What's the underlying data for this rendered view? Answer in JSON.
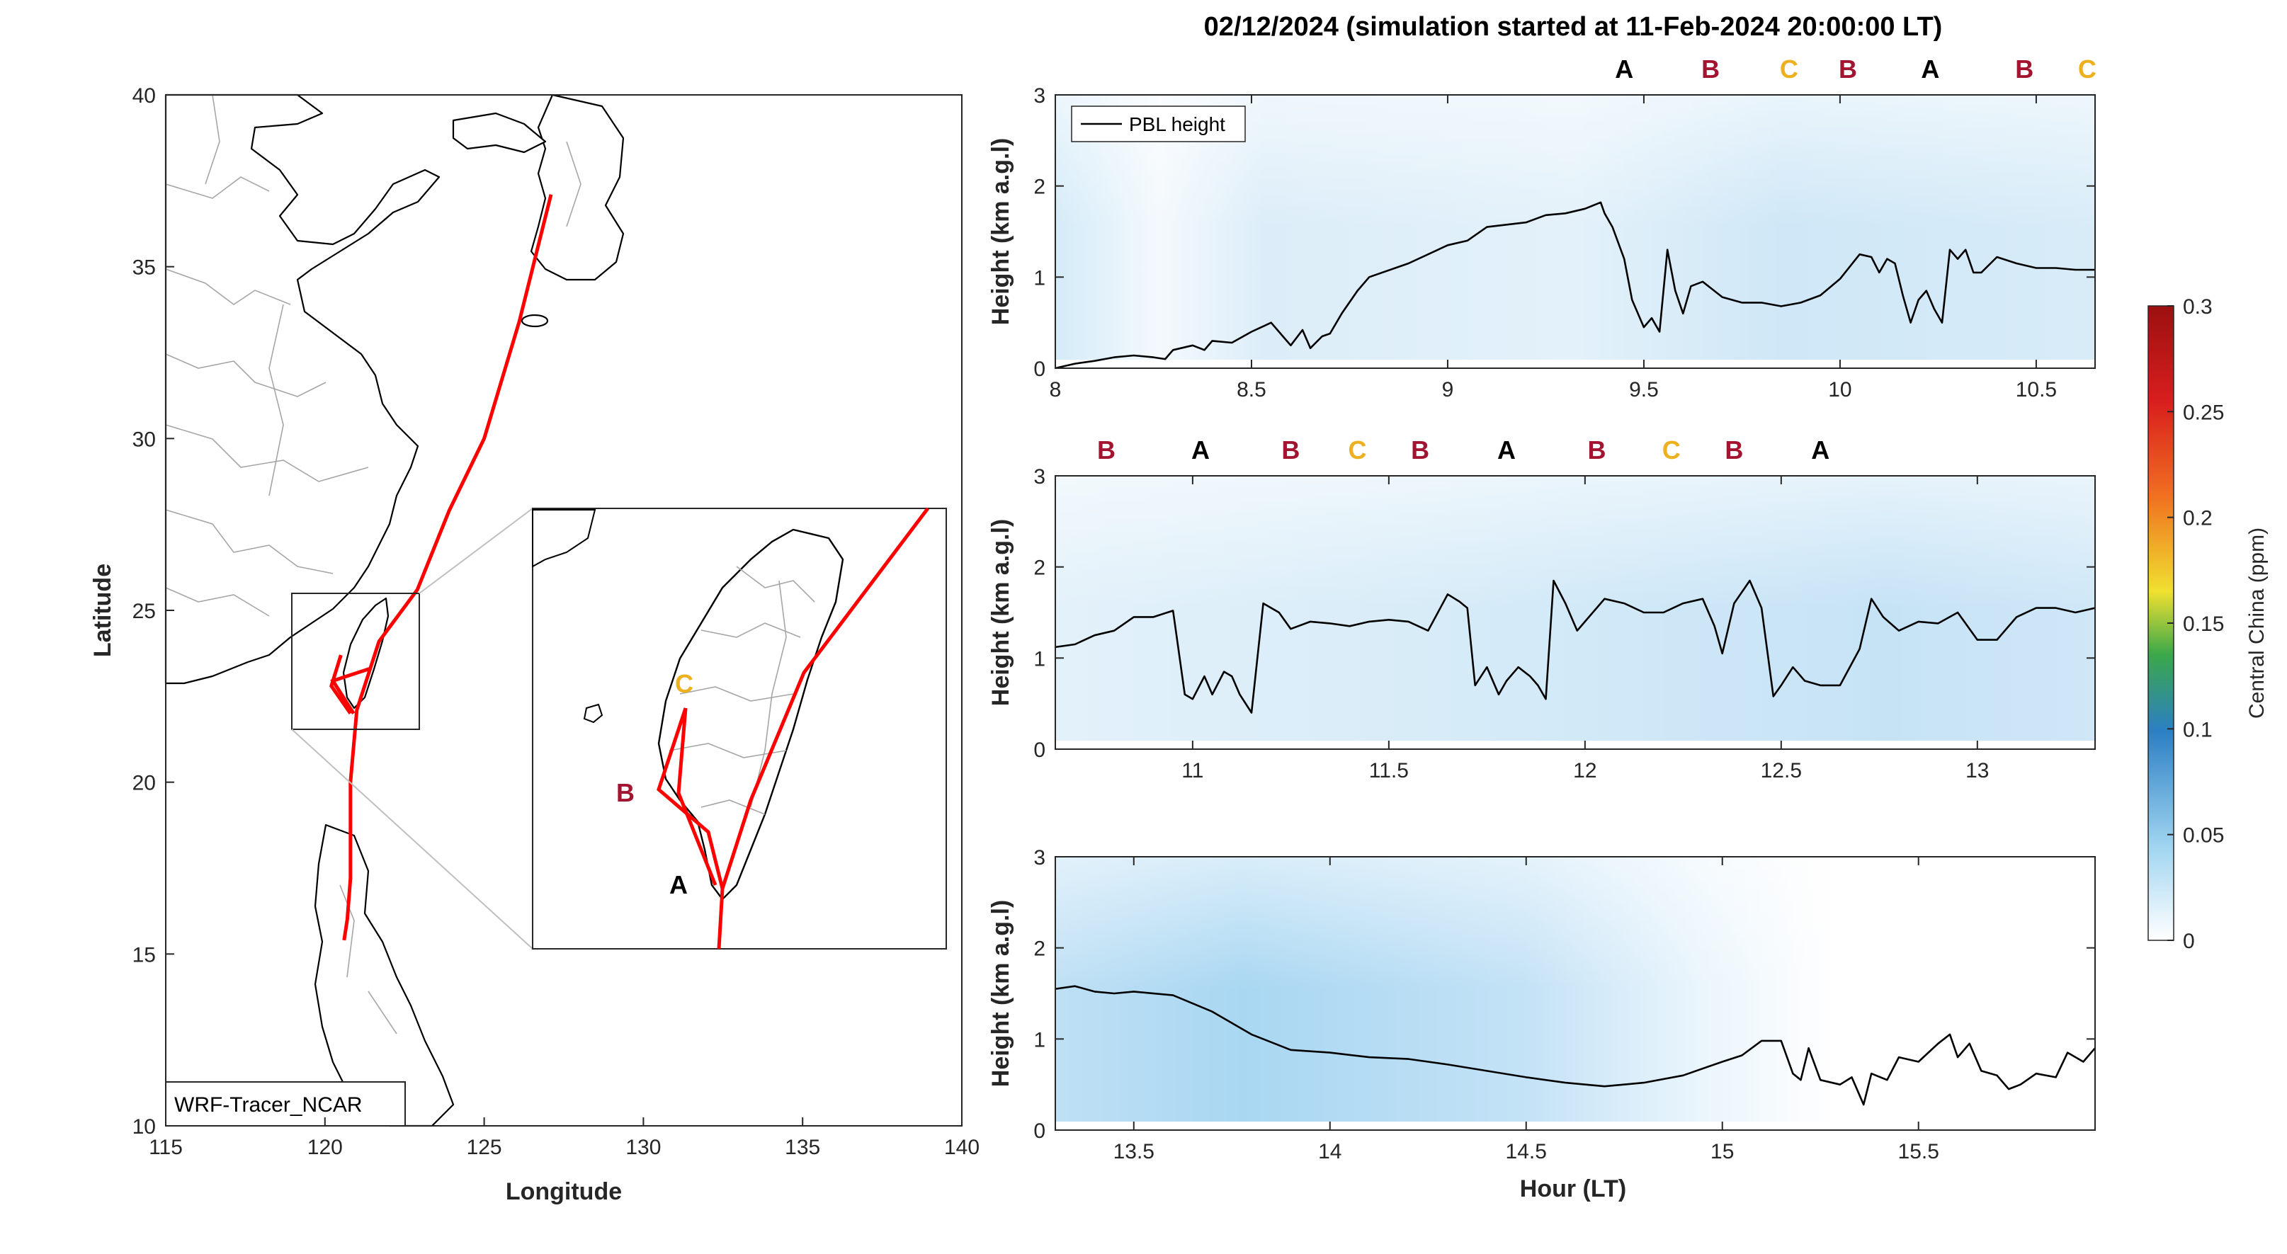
{
  "colors": {
    "A": "#000000",
    "B": "#a2142f",
    "C": "#edb120",
    "track": "#ff0000",
    "pbl": "#000000"
  },
  "chart_data": [
    {
      "type": "map",
      "xlabel": "Longitude",
      "ylabel": "Latitude",
      "xlim": [
        115,
        140
      ],
      "ylim": [
        10,
        40
      ],
      "xticks": [
        "115",
        "120",
        "125",
        "130",
        "135",
        "140"
      ],
      "yticks": [
        "10",
        "15",
        "20",
        "25",
        "30",
        "35",
        "40"
      ],
      "model_label": "WRF-Tracer_NCAR",
      "trajectory": [
        [
          127.1,
          37.1
        ],
        [
          126.1,
          33.4
        ],
        [
          125.0,
          30.0
        ],
        [
          123.9,
          27.9
        ],
        [
          122.9,
          25.6
        ],
        [
          121.7,
          24.1
        ],
        [
          121.0,
          22.1
        ],
        [
          120.8,
          20.0
        ],
        [
          120.8,
          17.2
        ],
        [
          120.7,
          16.0
        ],
        [
          120.6,
          15.4
        ]
      ],
      "taiwan_segments": [
        [
          [
            121.4,
            23.3
          ],
          [
            120.25,
            22.95
          ],
          [
            120.9,
            22.0
          ]
        ],
        [
          [
            120.5,
            23.7
          ],
          [
            120.2,
            22.8
          ],
          [
            120.8,
            22.0
          ]
        ]
      ],
      "inset_markers": [
        {
          "label": "C",
          "lon": 120.55,
          "lat": 23.7
        },
        {
          "label": "B",
          "lon": 119.9,
          "lat": 22.97
        },
        {
          "label": "A",
          "lon": 120.6,
          "lat": 22.25
        }
      ]
    },
    {
      "type": "heatmap",
      "title": "02/12/2024 (simulation started at 11-Feb-2024 20:00:00 LT)",
      "ylabel": "Height (km a.g.l)",
      "xlabel": "Hour (LT)",
      "colorbar_label": "Central China (ppm)",
      "colorbar_range": [
        0,
        0.3
      ],
      "colorbar_ticks": [
        "0",
        "0.05",
        "0.1",
        "0.15",
        "0.2",
        "0.25",
        "0.3"
      ],
      "legend": "PBL height",
      "legend_position": "top-left",
      "panels": [
        {
          "xlim": [
            8,
            10.65
          ],
          "xticks": [
            "8",
            "8.5",
            "9",
            "9.5",
            "10",
            "10.5"
          ],
          "ylim": [
            0,
            3
          ],
          "yticks": [
            "0",
            "1",
            "2",
            "3"
          ],
          "markers": [
            {
              "label": "A",
              "x": 9.45
            },
            {
              "label": "B",
              "x": 9.67
            },
            {
              "label": "C",
              "x": 9.87
            },
            {
              "label": "B",
              "x": 10.02
            },
            {
              "label": "A",
              "x": 10.23
            },
            {
              "label": "B",
              "x": 10.47
            },
            {
              "label": "C",
              "x": 10.63
            }
          ],
          "pbl": [
            [
              8.0,
              0.0
            ],
            [
              8.05,
              0.05
            ],
            [
              8.1,
              0.08
            ],
            [
              8.15,
              0.12
            ],
            [
              8.2,
              0.14
            ],
            [
              8.25,
              0.12
            ],
            [
              8.28,
              0.1
            ],
            [
              8.3,
              0.2
            ],
            [
              8.35,
              0.25
            ],
            [
              8.38,
              0.2
            ],
            [
              8.4,
              0.3
            ],
            [
              8.45,
              0.28
            ],
            [
              8.5,
              0.4
            ],
            [
              8.55,
              0.5
            ],
            [
              8.58,
              0.35
            ],
            [
              8.6,
              0.25
            ],
            [
              8.63,
              0.42
            ],
            [
              8.65,
              0.22
            ],
            [
              8.68,
              0.35
            ],
            [
              8.7,
              0.38
            ],
            [
              8.73,
              0.6
            ],
            [
              8.77,
              0.85
            ],
            [
              8.8,
              1.0
            ],
            [
              8.9,
              1.15
            ],
            [
              9.0,
              1.35
            ],
            [
              9.05,
              1.4
            ],
            [
              9.1,
              1.55
            ],
            [
              9.2,
              1.6
            ],
            [
              9.25,
              1.68
            ],
            [
              9.3,
              1.7
            ],
            [
              9.35,
              1.75
            ],
            [
              9.39,
              1.82
            ],
            [
              9.4,
              1.7
            ],
            [
              9.42,
              1.55
            ],
            [
              9.45,
              1.2
            ],
            [
              9.47,
              0.75
            ],
            [
              9.5,
              0.45
            ],
            [
              9.52,
              0.55
            ],
            [
              9.54,
              0.4
            ],
            [
              9.56,
              1.3
            ],
            [
              9.58,
              0.85
            ],
            [
              9.6,
              0.6
            ],
            [
              9.62,
              0.9
            ],
            [
              9.65,
              0.95
            ],
            [
              9.7,
              0.78
            ],
            [
              9.75,
              0.72
            ],
            [
              9.8,
              0.72
            ],
            [
              9.85,
              0.68
            ],
            [
              9.9,
              0.72
            ],
            [
              9.95,
              0.8
            ],
            [
              10.0,
              0.98
            ],
            [
              10.05,
              1.25
            ],
            [
              10.08,
              1.22
            ],
            [
              10.1,
              1.05
            ],
            [
              10.12,
              1.2
            ],
            [
              10.14,
              1.15
            ],
            [
              10.16,
              0.8
            ],
            [
              10.18,
              0.5
            ],
            [
              10.2,
              0.75
            ],
            [
              10.22,
              0.85
            ],
            [
              10.24,
              0.65
            ],
            [
              10.26,
              0.5
            ],
            [
              10.28,
              1.3
            ],
            [
              10.3,
              1.2
            ],
            [
              10.32,
              1.3
            ],
            [
              10.34,
              1.05
            ],
            [
              10.36,
              1.05
            ],
            [
              10.4,
              1.22
            ],
            [
              10.45,
              1.15
            ],
            [
              10.5,
              1.1
            ],
            [
              10.55,
              1.1
            ],
            [
              10.6,
              1.08
            ],
            [
              10.65,
              1.08
            ]
          ]
        },
        {
          "xlim": [
            10.65,
            13.3
          ],
          "xticks": [
            "11",
            "11.5",
            "12",
            "12.5",
            "13"
          ],
          "ylim": [
            0,
            3
          ],
          "yticks": [
            "0",
            "1",
            "2",
            "3"
          ],
          "markers": [
            {
              "label": "B",
              "x": 10.78
            },
            {
              "label": "A",
              "x": 11.02
            },
            {
              "label": "B",
              "x": 11.25
            },
            {
              "label": "C",
              "x": 11.42
            },
            {
              "label": "B",
              "x": 11.58
            },
            {
              "label": "A",
              "x": 11.8
            },
            {
              "label": "B",
              "x": 12.03
            },
            {
              "label": "C",
              "x": 12.22
            },
            {
              "label": "B",
              "x": 12.38
            },
            {
              "label": "A",
              "x": 12.6
            }
          ],
          "pbl": [
            [
              10.65,
              1.12
            ],
            [
              10.7,
              1.15
            ],
            [
              10.75,
              1.25
            ],
            [
              10.8,
              1.3
            ],
            [
              10.85,
              1.45
            ],
            [
              10.9,
              1.45
            ],
            [
              10.95,
              1.52
            ],
            [
              10.98,
              0.6
            ],
            [
              11.0,
              0.55
            ],
            [
              11.03,
              0.8
            ],
            [
              11.05,
              0.6
            ],
            [
              11.08,
              0.85
            ],
            [
              11.1,
              0.8
            ],
            [
              11.12,
              0.6
            ],
            [
              11.15,
              0.4
            ],
            [
              11.18,
              1.6
            ],
            [
              11.22,
              1.5
            ],
            [
              11.25,
              1.32
            ],
            [
              11.3,
              1.4
            ],
            [
              11.35,
              1.38
            ],
            [
              11.4,
              1.35
            ],
            [
              11.45,
              1.4
            ],
            [
              11.5,
              1.42
            ],
            [
              11.55,
              1.4
            ],
            [
              11.6,
              1.3
            ],
            [
              11.65,
              1.7
            ],
            [
              11.68,
              1.62
            ],
            [
              11.7,
              1.55
            ],
            [
              11.72,
              0.7
            ],
            [
              11.75,
              0.9
            ],
            [
              11.78,
              0.6
            ],
            [
              11.8,
              0.75
            ],
            [
              11.83,
              0.9
            ],
            [
              11.86,
              0.8
            ],
            [
              11.88,
              0.7
            ],
            [
              11.9,
              0.55
            ],
            [
              11.92,
              1.85
            ],
            [
              11.95,
              1.6
            ],
            [
              11.98,
              1.3
            ],
            [
              12.0,
              1.4
            ],
            [
              12.05,
              1.65
            ],
            [
              12.1,
              1.6
            ],
            [
              12.15,
              1.5
            ],
            [
              12.2,
              1.5
            ],
            [
              12.25,
              1.6
            ],
            [
              12.3,
              1.65
            ],
            [
              12.33,
              1.35
            ],
            [
              12.35,
              1.05
            ],
            [
              12.38,
              1.6
            ],
            [
              12.42,
              1.85
            ],
            [
              12.45,
              1.55
            ],
            [
              12.48,
              0.58
            ],
            [
              12.5,
              0.7
            ],
            [
              12.53,
              0.9
            ],
            [
              12.56,
              0.75
            ],
            [
              12.6,
              0.7
            ],
            [
              12.65,
              0.7
            ],
            [
              12.7,
              1.1
            ],
            [
              12.73,
              1.65
            ],
            [
              12.76,
              1.45
            ],
            [
              12.8,
              1.3
            ],
            [
              12.85,
              1.4
            ],
            [
              12.9,
              1.38
            ],
            [
              12.95,
              1.5
            ],
            [
              13.0,
              1.2
            ],
            [
              13.05,
              1.2
            ],
            [
              13.1,
              1.45
            ],
            [
              13.15,
              1.55
            ],
            [
              13.2,
              1.55
            ],
            [
              13.25,
              1.5
            ],
            [
              13.3,
              1.55
            ]
          ]
        },
        {
          "xlim": [
            13.3,
            15.95
          ],
          "xticks": [
            "13.5",
            "14",
            "14.5",
            "15",
            "15.5"
          ],
          "ylim": [
            0,
            3
          ],
          "yticks": [
            "0",
            "1",
            "2",
            "3"
          ],
          "markers": [],
          "pbl": [
            [
              13.3,
              1.55
            ],
            [
              13.35,
              1.58
            ],
            [
              13.4,
              1.52
            ],
            [
              13.45,
              1.5
            ],
            [
              13.5,
              1.52
            ],
            [
              13.6,
              1.48
            ],
            [
              13.7,
              1.3
            ],
            [
              13.8,
              1.05
            ],
            [
              13.9,
              0.88
            ],
            [
              14.0,
              0.85
            ],
            [
              14.1,
              0.8
            ],
            [
              14.2,
              0.78
            ],
            [
              14.3,
              0.72
            ],
            [
              14.4,
              0.65
            ],
            [
              14.5,
              0.58
            ],
            [
              14.6,
              0.52
            ],
            [
              14.7,
              0.48
            ],
            [
              14.8,
              0.52
            ],
            [
              14.9,
              0.6
            ],
            [
              15.0,
              0.75
            ],
            [
              15.05,
              0.82
            ],
            [
              15.1,
              0.98
            ],
            [
              15.15,
              0.98
            ],
            [
              15.18,
              0.62
            ],
            [
              15.2,
              0.55
            ],
            [
              15.22,
              0.9
            ],
            [
              15.25,
              0.55
            ],
            [
              15.3,
              0.5
            ],
            [
              15.33,
              0.58
            ],
            [
              15.36,
              0.28
            ],
            [
              15.38,
              0.62
            ],
            [
              15.42,
              0.55
            ],
            [
              15.45,
              0.8
            ],
            [
              15.5,
              0.75
            ],
            [
              15.55,
              0.95
            ],
            [
              15.58,
              1.05
            ],
            [
              15.6,
              0.8
            ],
            [
              15.63,
              0.95
            ],
            [
              15.66,
              0.65
            ],
            [
              15.7,
              0.6
            ],
            [
              15.73,
              0.45
            ],
            [
              15.76,
              0.5
            ],
            [
              15.8,
              0.62
            ],
            [
              15.85,
              0.58
            ],
            [
              15.88,
              0.85
            ],
            [
              15.92,
              0.75
            ],
            [
              15.95,
              0.9
            ]
          ]
        }
      ]
    }
  ]
}
